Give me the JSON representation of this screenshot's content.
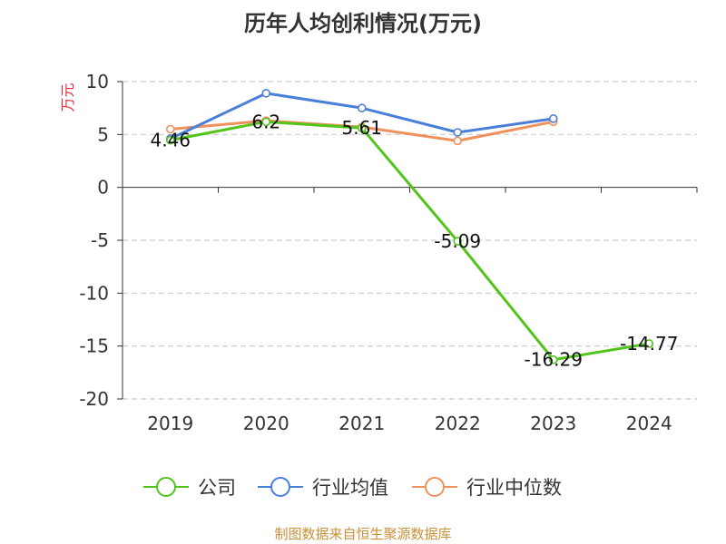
{
  "chart_data": {
    "type": "line",
    "title": "历年人均创利情况(万元)",
    "ylabel": "万元",
    "xlabel": "",
    "categories": [
      "2019",
      "2020",
      "2021",
      "2022",
      "2023",
      "2024"
    ],
    "ylim": [
      -20,
      10
    ],
    "yticks": [
      10,
      5,
      0,
      -5,
      -10,
      -15,
      -20
    ],
    "grid": true,
    "legend_position": "bottom",
    "series": [
      {
        "name": "公司",
        "color": "#52c41a",
        "values": [
          4.46,
          6.2,
          5.61,
          -5.09,
          -16.29,
          -14.77
        ],
        "labels": [
          "4.46",
          "6.2",
          "5.61",
          "-5.09",
          "-16.29",
          "-14.77"
        ]
      },
      {
        "name": "行业均值",
        "color": "#4a7fd9",
        "values": [
          4.6,
          8.9,
          7.5,
          5.2,
          6.5,
          null
        ]
      },
      {
        "name": "行业中位数",
        "color": "#f0915c",
        "values": [
          5.5,
          6.3,
          5.7,
          4.4,
          6.2,
          null
        ]
      }
    ]
  },
  "footer": {
    "source": "制图数据来自恒生聚源数据库"
  }
}
